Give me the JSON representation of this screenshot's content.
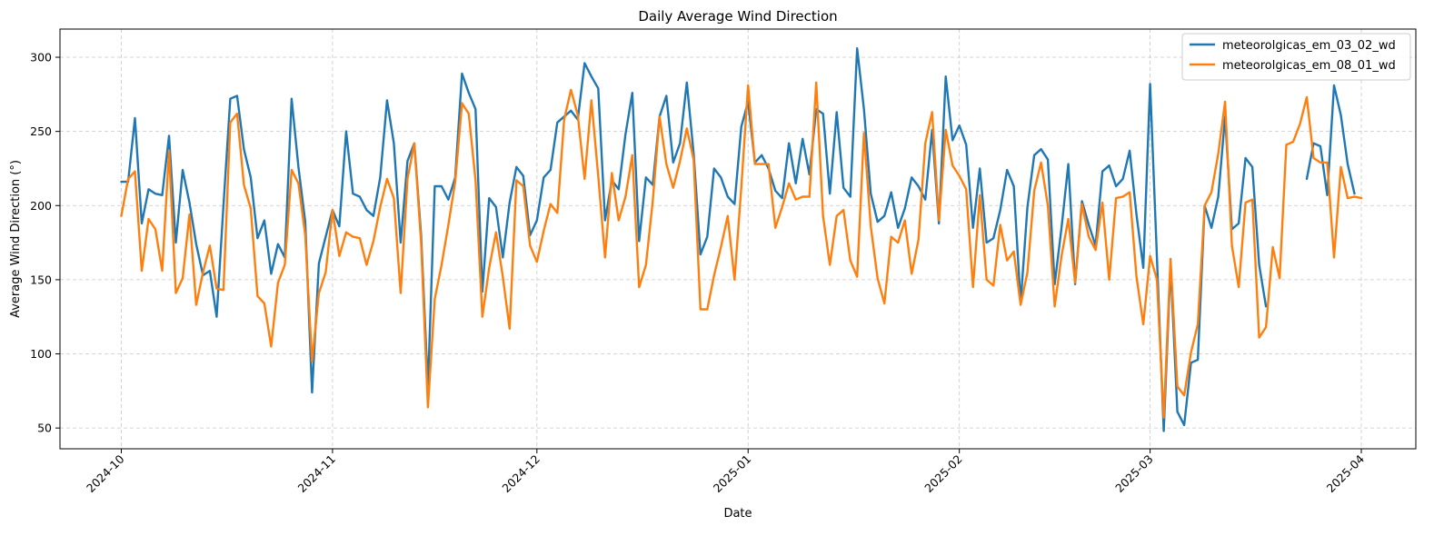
{
  "chart_data": {
    "type": "line",
    "title": "Daily Average Wind Direction",
    "xlabel": "Date",
    "ylabel": "Average Wind Direction (°)",
    "x_range": [
      "2024-09-22",
      "2025-04-09"
    ],
    "ylim": [
      36,
      319
    ],
    "x_ticks": [
      {
        "date": "2024-10-01",
        "label": "2024-10"
      },
      {
        "date": "2024-11-01",
        "label": "2024-11"
      },
      {
        "date": "2024-12-01",
        "label": "2024-12"
      },
      {
        "date": "2025-01-01",
        "label": "2025-01"
      },
      {
        "date": "2025-02-01",
        "label": "2025-02"
      },
      {
        "date": "2025-03-01",
        "label": "2025-03"
      },
      {
        "date": "2025-04-01",
        "label": "2025-04"
      }
    ],
    "y_ticks": [
      50,
      100,
      150,
      200,
      250,
      300
    ],
    "grid": true,
    "legend_position": "top-right",
    "x_start": "2024-10-01",
    "series": [
      {
        "name": "meteorolgicas_em_03_02_wd",
        "color": "#1f77b4",
        "values": [
          216,
          216,
          259,
          188,
          211,
          208,
          207,
          247,
          175,
          224,
          202,
          174,
          153,
          156,
          125,
          200,
          272,
          274,
          238,
          219,
          178,
          190,
          154,
          174,
          165,
          272,
          226,
          189,
          74,
          161,
          179,
          197,
          186,
          250,
          208,
          206,
          197,
          193,
          219,
          271,
          242,
          175,
          230,
          242,
          180,
          77,
          213,
          213,
          204,
          219,
          289,
          276,
          265,
          142,
          205,
          199,
          165,
          202,
          226,
          220,
          180,
          190,
          219,
          224,
          256,
          260,
          264,
          258,
          296,
          287,
          279,
          190,
          217,
          211,
          248,
          276,
          176,
          219,
          214,
          260,
          274,
          229,
          242,
          283,
          235,
          167,
          179,
          225,
          219,
          206,
          201,
          253,
          270,
          229,
          234,
          225,
          210,
          205,
          242,
          215,
          245,
          221,
          265,
          262,
          208,
          263,
          212,
          206,
          306,
          265,
          208,
          189,
          193,
          209,
          185,
          198,
          219,
          213,
          204,
          251,
          188,
          287,
          244,
          254,
          241,
          185,
          225,
          175,
          178,
          197,
          224,
          213,
          134,
          199,
          234,
          238,
          231,
          147,
          185,
          228,
          147,
          203,
          187,
          173,
          223,
          227,
          213,
          218,
          237,
          194,
          158,
          282,
          165,
          48,
          160,
          61,
          52,
          94,
          96,
          200,
          185,
          206,
          260,
          184,
          188,
          232,
          226,
          160,
          132,
          null,
          null,
          null,
          null,
          null,
          218,
          242,
          240,
          207,
          281,
          261,
          228,
          208
        ]
      },
      {
        "name": "meteorolgicas_em_08_01_wd",
        "color": "#ff7f0e",
        "values": [
          193,
          218,
          223,
          156,
          191,
          184,
          156,
          237,
          141,
          151,
          194,
          133,
          155,
          173,
          144,
          143,
          256,
          262,
          214,
          198,
          139,
          134,
          105,
          148,
          160,
          224,
          215,
          180,
          95,
          141,
          155,
          197,
          166,
          182,
          179,
          178,
          160,
          176,
          199,
          218,
          205,
          141,
          218,
          242,
          175,
          64,
          137,
          160,
          187,
          216,
          269,
          262,
          217,
          125,
          158,
          182,
          152,
          117,
          217,
          213,
          173,
          162,
          183,
          201,
          195,
          258,
          278,
          261,
          218,
          271,
          220,
          165,
          222,
          190,
          206,
          234,
          145,
          160,
          203,
          260,
          228,
          212,
          230,
          252,
          231,
          130,
          130,
          153,
          172,
          193,
          150,
          212,
          281,
          228,
          228,
          228,
          185,
          199,
          215,
          204,
          206,
          206,
          283,
          193,
          160,
          193,
          197,
          163,
          152,
          249,
          186,
          151,
          134,
          179,
          175,
          190,
          154,
          177,
          242,
          263,
          190,
          251,
          227,
          220,
          211,
          145,
          207,
          150,
          146,
          187,
          163,
          169,
          133,
          155,
          210,
          229,
          200,
          132,
          166,
          191,
          148,
          201,
          179,
          170,
          202,
          150,
          205,
          206,
          209,
          152,
          120,
          166,
          150,
          57,
          164,
          78,
          72,
          101,
          120,
          200,
          209,
          235,
          270,
          173,
          145,
          202,
          204,
          111,
          118,
          172,
          151,
          241,
          243,
          255,
          273,
          232,
          229,
          229,
          165,
          226,
          205,
          206,
          205
        ]
      }
    ]
  }
}
